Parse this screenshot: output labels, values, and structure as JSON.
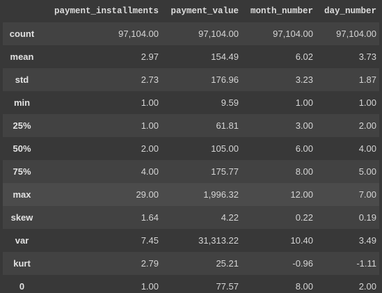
{
  "table": {
    "columns": [
      "payment_installments",
      "payment_value",
      "month_number",
      "day_number"
    ],
    "rows": [
      {
        "label": "count",
        "values": [
          "97,104.00",
          "97,104.00",
          "97,104.00",
          "97,104.00"
        ]
      },
      {
        "label": "mean",
        "values": [
          "2.97",
          "154.49",
          "6.02",
          "3.73"
        ]
      },
      {
        "label": "std",
        "values": [
          "2.73",
          "176.96",
          "3.23",
          "1.87"
        ]
      },
      {
        "label": "min",
        "values": [
          "1.00",
          "9.59",
          "1.00",
          "1.00"
        ]
      },
      {
        "label": "25%",
        "values": [
          "1.00",
          "61.81",
          "3.00",
          "2.00"
        ]
      },
      {
        "label": "50%",
        "values": [
          "2.00",
          "105.00",
          "6.00",
          "4.00"
        ]
      },
      {
        "label": "75%",
        "values": [
          "4.00",
          "175.77",
          "8.00",
          "5.00"
        ]
      },
      {
        "label": "max",
        "values": [
          "29.00",
          "1,996.32",
          "12.00",
          "7.00"
        ]
      },
      {
        "label": "skew",
        "values": [
          "1.64",
          "4.22",
          "0.22",
          "0.19"
        ]
      },
      {
        "label": "var",
        "values": [
          "7.45",
          "31,313.22",
          "10.40",
          "3.49"
        ]
      },
      {
        "label": "kurt",
        "values": [
          "2.79",
          "25.21",
          "-0.96",
          "-1.11"
        ]
      },
      {
        "label": "0",
        "values": [
          "1.00",
          "77.57",
          "8.00",
          "2.00"
        ]
      }
    ]
  }
}
